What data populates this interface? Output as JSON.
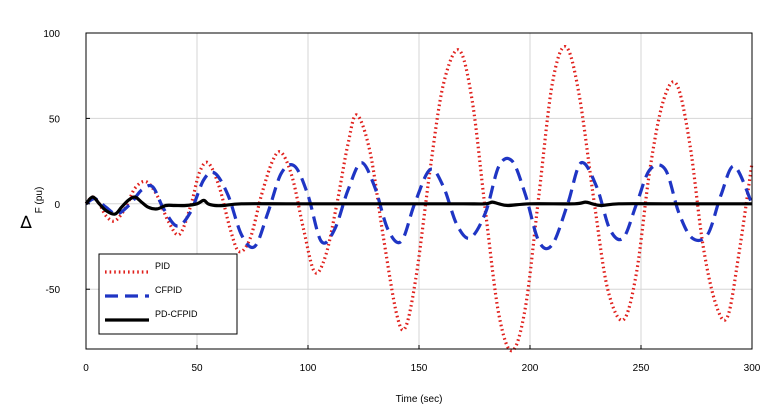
{
  "chart_data": {
    "type": "line",
    "title": "",
    "xlabel": "Time (sec)",
    "ylabel_symbol": "∆",
    "ylabel_text": "F (pu)",
    "xlim": [
      0,
      300
    ],
    "ylim": [
      -85,
      100
    ],
    "grid": true,
    "legend_position": "bottom-left",
    "x_ticks": [
      0,
      50,
      100,
      150,
      200,
      250,
      300
    ],
    "y_ticks": [
      -50,
      0,
      50,
      100
    ],
    "x_tick_labels": [
      "0",
      "50",
      "100",
      "150",
      "200",
      "250",
      "300"
    ],
    "y_tick_labels": [
      "-50",
      "0",
      "50",
      "100"
    ],
    "series": [
      {
        "name": "PID",
        "color": "#e0201c",
        "style": "dotted",
        "x": [
          0,
          3,
          6,
          9,
          13,
          18,
          22,
          27,
          32,
          37,
          42,
          47,
          51,
          55,
          60,
          65,
          69,
          74,
          79,
          84,
          88,
          93,
          98,
          103,
          108,
          113,
          118,
          122,
          128,
          134,
          140,
          144,
          149,
          155,
          161,
          168,
          174,
          180,
          186,
          192,
          198,
          204,
          210,
          216,
          222,
          229,
          235,
          242,
          248,
          254,
          260,
          266,
          272,
          278,
          284,
          289,
          294,
          300
        ],
        "y": [
          0,
          4,
          0,
          -7,
          -10,
          -2,
          9,
          13,
          5,
          -10,
          -18,
          -2,
          18,
          24,
          10,
          -15,
          -28,
          -20,
          5,
          25,
          30,
          15,
          -15,
          -40,
          -30,
          0,
          35,
          52,
          30,
          -20,
          -65,
          -72,
          -40,
          20,
          70,
          90,
          60,
          -5,
          -65,
          -86,
          -60,
          5,
          70,
          92,
          65,
          0,
          -50,
          -68,
          -40,
          20,
          60,
          70,
          35,
          -25,
          -60,
          -66,
          -30,
          24
        ]
      },
      {
        "name": "CFPID",
        "color": "#1f35c4",
        "style": "dashed",
        "x": [
          0,
          4,
          9,
          14,
          20,
          25,
          30,
          35,
          41,
          47,
          53,
          58,
          64,
          70,
          76,
          82,
          88,
          94,
          100,
          106,
          112,
          118,
          124,
          130,
          136,
          142,
          148,
          155,
          161,
          167,
          173,
          180,
          186,
          192,
          198,
          204,
          210,
          217,
          223,
          230,
          236,
          242,
          248,
          254,
          261,
          267,
          273,
          280,
          286,
          292,
          300
        ],
        "y": [
          0,
          3,
          -2,
          -6,
          0,
          8,
          10,
          -3,
          -13,
          -5,
          14,
          18,
          5,
          -18,
          -25,
          -5,
          18,
          22,
          5,
          -22,
          -15,
          8,
          24,
          10,
          -15,
          -22,
          0,
          20,
          10,
          -12,
          -20,
          -5,
          22,
          25,
          5,
          -22,
          -24,
          0,
          24,
          10,
          -15,
          -20,
          0,
          20,
          20,
          -5,
          -20,
          -18,
          5,
          22,
          0
        ]
      },
      {
        "name": "PD-CFPID",
        "color": "#000000",
        "style": "solid",
        "x": [
          0,
          3,
          6,
          9,
          13,
          16,
          19,
          22,
          25,
          28,
          32,
          36,
          40,
          45,
          50,
          53,
          55,
          58,
          62,
          70,
          90,
          110,
          130,
          150,
          170,
          180,
          183,
          186,
          190,
          200,
          220,
          225,
          228,
          232,
          240,
          260,
          280,
          300
        ],
        "y": [
          0,
          4,
          0,
          -4,
          -6,
          -2,
          2,
          4,
          1,
          -2,
          -3,
          -1,
          -1,
          -1,
          0,
          2,
          0,
          -1,
          -1,
          0,
          0,
          0,
          0,
          0,
          0,
          0,
          1,
          0,
          -1,
          0,
          0,
          1,
          0,
          -1,
          0,
          0,
          0,
          0
        ]
      }
    ]
  }
}
